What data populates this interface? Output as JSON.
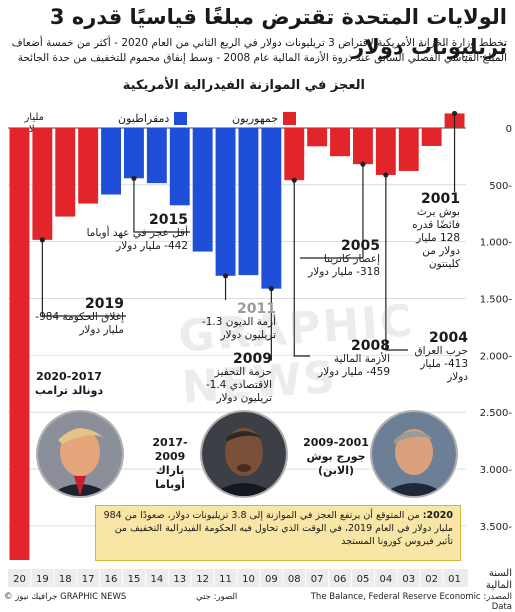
{
  "title": "الولايات المتحدة تقترض مبلغًا قياسيًا قدره 3 تريليونات دولار",
  "subtitle": "تخطط وزارة الخزانة الأمريكية لاقتراض 3 تريليونات دولار في الربع الثاني من العام 2020 - أكثر من خمسة أضعاف المبلغ القياسي الفصلي السابق عند ذروة الأزمة المالية عام 2008 - وسط إنفاق محموم للتخفيف من حدة الجائحة",
  "colors": {
    "democrat": "#1f4fd8",
    "republican": "#e2252b",
    "accent_box": "#f7e6a6"
  },
  "chart_data": {
    "type": "bar",
    "title": "العجز في الموازنة الفيدرالية الأمريكية",
    "ylabel": "مليار دولار",
    "xlabel": "السنة المالية",
    "ylim": [
      -3800,
      200
    ],
    "yticks": [
      0,
      -500,
      -1000,
      -1500,
      -2000,
      -2500,
      -3000,
      -3500
    ],
    "ytick_labels": [
      "0",
      "500-",
      "1.000-",
      "1.500-",
      "2.000-",
      "2.500-",
      "3.000-",
      "3.500-"
    ],
    "categories": [
      "20",
      "19",
      "18",
      "17",
      "16",
      "15",
      "14",
      "13",
      "12",
      "11",
      "10",
      "09",
      "08",
      "07",
      "06",
      "05",
      "04",
      "03",
      "02",
      "01"
    ],
    "values": [
      -3800,
      -984,
      -779,
      -665,
      -585,
      -442,
      -485,
      -680,
      -1087,
      -1300,
      -1294,
      -1413,
      -459,
      -161,
      -248,
      -318,
      -413,
      -378,
      -158,
      128
    ],
    "party": [
      "R",
      "R",
      "R",
      "R",
      "D",
      "D",
      "D",
      "D",
      "D",
      "D",
      "D",
      "D",
      "R",
      "R",
      "R",
      "R",
      "R",
      "R",
      "R",
      "R"
    ],
    "series": [
      {
        "name": "دمقراطيون",
        "party": "D"
      },
      {
        "name": "جمهوريون",
        "party": "R"
      }
    ]
  },
  "annotations": {
    "a2001": {
      "year": "2001",
      "text": "بوش يرث فائضًا قدره 128 مليار دولار من كلينتون"
    },
    "a2015": {
      "year": "2015",
      "text": "أقل عجز في عهد أوباما 442- مليار دولار"
    },
    "a2005": {
      "year": "2005",
      "text": "إعصار كاترينا 318- مليار دولار"
    },
    "a2019": {
      "year": "2019",
      "text": "إغلاق الحكومة 984- مليار دولار"
    },
    "a2011": {
      "year": "2011",
      "text": "أزمة الديون 1.3- تريليون دولار"
    },
    "a2008": {
      "year": "2008",
      "text": "الأزمة المالية 459- مليار دولار"
    },
    "a2004": {
      "year": "2004",
      "text": "حرب العراق 413- مليار دولار"
    },
    "a2009": {
      "year": "2009",
      "text": "حزمة التحفيز الاقتصادي 1.4- تريليون دولار"
    }
  },
  "presidents": {
    "trump": {
      "years": "2020-2017",
      "name": "دونالد ترامب"
    },
    "obama": {
      "years": "2017-2009",
      "name": "باراك أوباما"
    },
    "bush": {
      "years": "2009-2001",
      "name": "جورج بوش (الابن)"
    }
  },
  "callout": {
    "lead": "2020:",
    "text": "من المتوقع أن يرتفع العجز في الموازنة إلى 3.8 تريليونات دولار، صعودًا من 984 مليار دولار في العام 2019، في الوقت الذي تحاول فيه الحكومة الفيدرالية التخفيف من تأثير فيروس كورونا المستجد"
  },
  "footer": {
    "source": "المصدر: The Balance, Federal Reserve Economic Data",
    "photos": "الصور: جتي",
    "credit": "© جرافيك نيوز GRAPHIC NEWS"
  },
  "watermark": "GRAPHIC NEWS"
}
